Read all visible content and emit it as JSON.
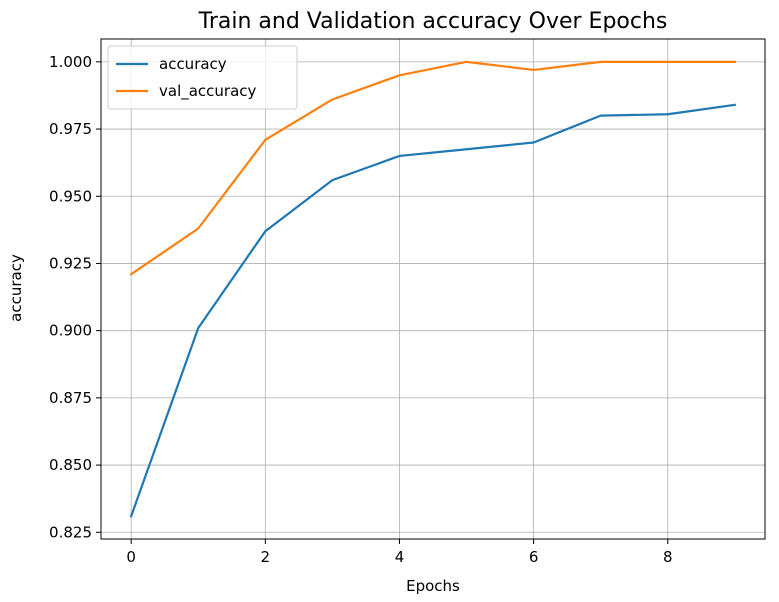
{
  "chart_data": {
    "type": "line",
    "title": "Train and Validation accuracy Over Epochs",
    "xlabel": "Epochs",
    "ylabel": "accuracy",
    "x": [
      0,
      1,
      2,
      3,
      4,
      5,
      6,
      7,
      8,
      9
    ],
    "xlim": [
      -0.45,
      9.45
    ],
    "ylim": [
      0.8225,
      1.0085
    ],
    "xticks": [
      0,
      2,
      4,
      6,
      8
    ],
    "xtick_labels": [
      "0",
      "2",
      "4",
      "6",
      "8"
    ],
    "yticks": [
      0.825,
      0.85,
      0.875,
      0.9,
      0.925,
      0.95,
      0.975,
      1.0
    ],
    "ytick_labels": [
      "0.825",
      "0.850",
      "0.875",
      "0.900",
      "0.925",
      "0.950",
      "0.975",
      "1.000"
    ],
    "grid": true,
    "legend_position": "upper-left",
    "series": [
      {
        "name": "accuracy",
        "color": "#1f77b4",
        "values": [
          0.831,
          0.901,
          0.937,
          0.956,
          0.965,
          0.9675,
          0.97,
          0.98,
          0.9805,
          0.984
        ]
      },
      {
        "name": "val_accuracy",
        "color": "#ff7f0e",
        "values": [
          0.921,
          0.938,
          0.971,
          0.986,
          0.995,
          1.0,
          0.997,
          1.0,
          1.0,
          1.0
        ]
      }
    ]
  }
}
